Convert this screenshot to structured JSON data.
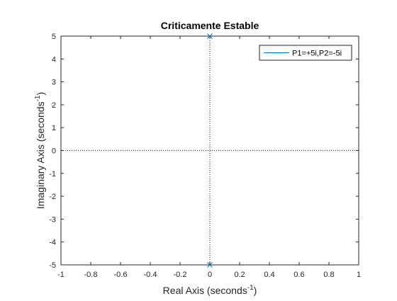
{
  "chart_data": {
    "type": "scatter",
    "title": "Criticamente Estable",
    "xlabel": {
      "text": "Real Axis (seconds",
      "sup": "-1",
      "suffix": ")"
    },
    "ylabel": {
      "text": "Imaginary Axis (seconds",
      "sup": "-1",
      "suffix": ")"
    },
    "xlim": [
      -1,
      1
    ],
    "ylim": [
      -5,
      5
    ],
    "xticks": [
      -1,
      -0.8,
      -0.6,
      -0.4,
      -0.2,
      0,
      0.2,
      0.4,
      0.6,
      0.8,
      1
    ],
    "xtick_labels": [
      "-1",
      "-0.8",
      "-0.6",
      "-0.4",
      "-0.2",
      "0",
      "0.2",
      "0.4",
      "0.6",
      "0.8",
      "1"
    ],
    "yticks": [
      -5,
      -4,
      -3,
      -2,
      -1,
      0,
      1,
      2,
      3,
      4,
      5
    ],
    "ytick_labels": [
      "-5",
      "-4",
      "-3",
      "-2",
      "-1",
      "0",
      "1",
      "2",
      "3",
      "4",
      "5"
    ],
    "grid": false,
    "reference_lines": {
      "x": 0,
      "y": 0,
      "style": "dotted"
    },
    "legend_placement": "top-right",
    "series": [
      {
        "name": "P1=+5i,P2=-5i",
        "marker": "x",
        "color": "#0072BD",
        "points": [
          {
            "x": 0,
            "y": 5
          },
          {
            "x": 0,
            "y": -5
          }
        ]
      }
    ]
  }
}
